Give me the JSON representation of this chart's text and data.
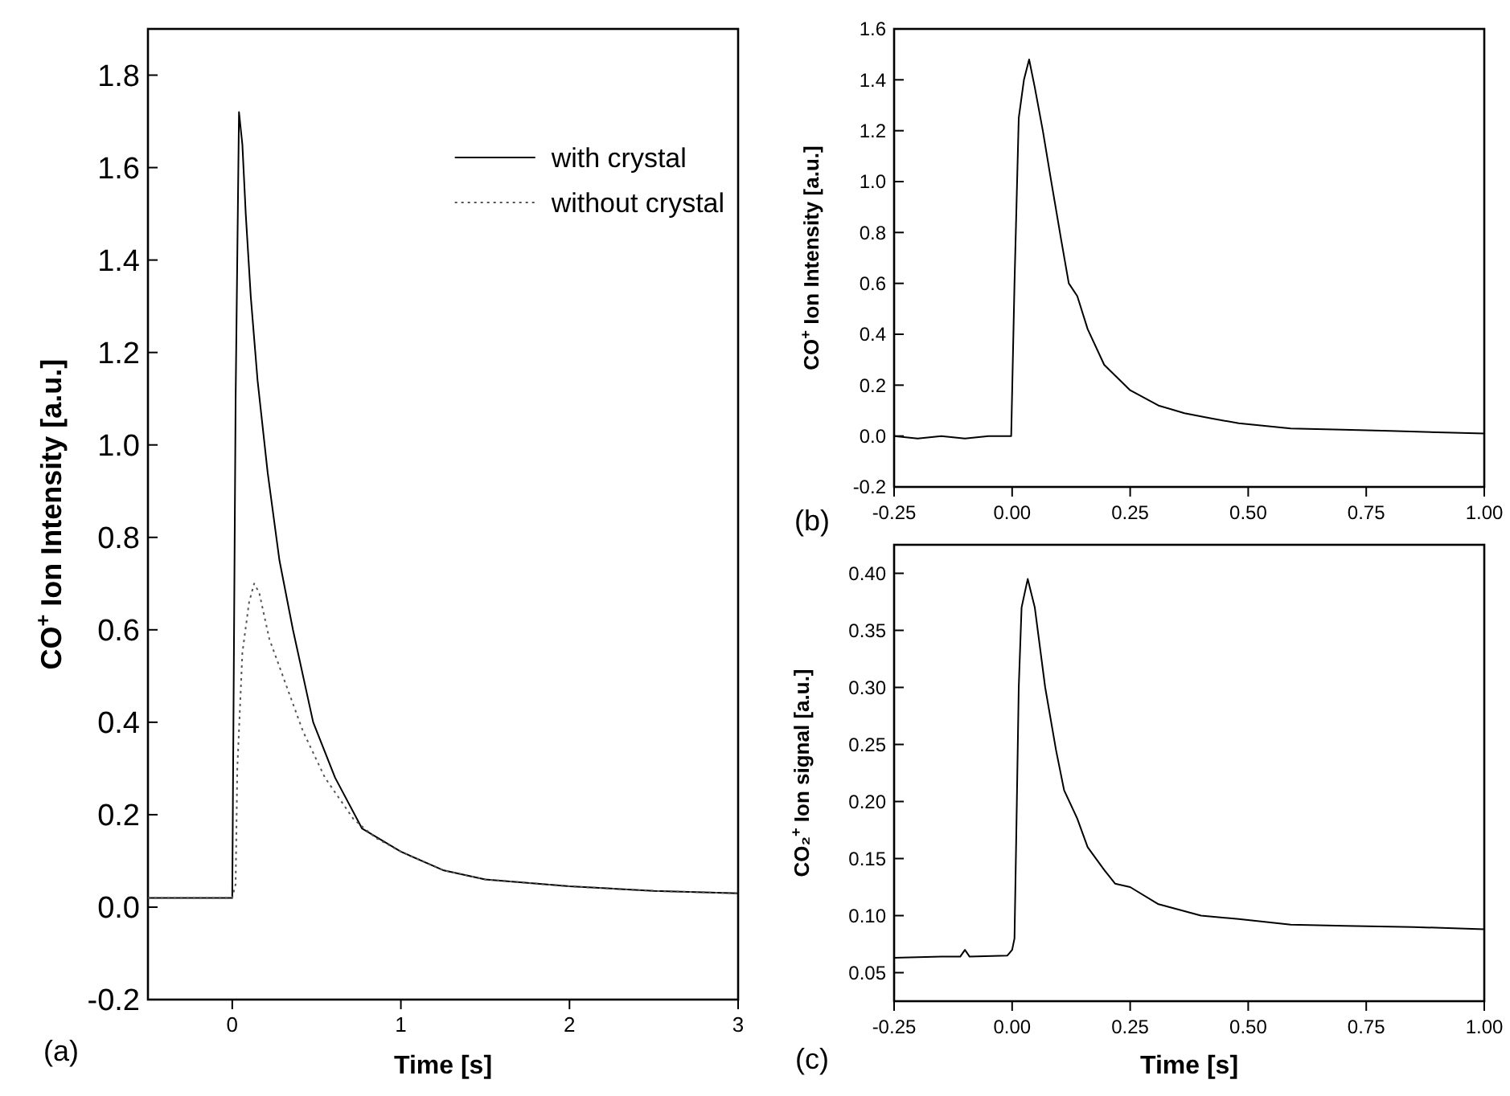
{
  "chart_data": [
    {
      "type": "line",
      "xlabel": "Time [s]",
      "ylabel": "CO$^{+}$ Ion Intensity [a.u.]",
      "annotations": [
        "(a)"
      ],
      "xlim": [
        -0.5,
        3
      ],
      "ylim": [
        -0.2,
        1.9
      ],
      "xticks": [
        0,
        1,
        2,
        3
      ],
      "yticks": [
        -0.2,
        {
          "value": 0,
          "label": "0.0"
        },
        0.2,
        0.4,
        0.6,
        0.8,
        {
          "value": 1,
          "label": "1.0"
        },
        1.2,
        1.4,
        1.6,
        1.8
      ],
      "grid": false,
      "legend": "top right",
      "series": [
        {
          "name": "with crystal",
          "color": "#000000",
          "line_style": "solid",
          "x": [
            -0.5,
            -0.3,
            -0.1,
            -0.01,
            0.0,
            0.02,
            0.04,
            0.06,
            0.08,
            0.11,
            0.15,
            0.21,
            0.28,
            0.36,
            0.48,
            0.61,
            0.77,
            1.0,
            1.25,
            1.5,
            2.0,
            2.5,
            3.0
          ],
          "values": [
            0.02,
            0.02,
            0.02,
            0.02,
            0.02,
            1.1,
            1.72,
            1.65,
            1.5,
            1.32,
            1.14,
            0.94,
            0.75,
            0.6,
            0.4,
            0.28,
            0.17,
            0.12,
            0.08,
            0.06,
            0.045,
            0.035,
            0.03
          ]
        },
        {
          "name": "without crystal",
          "color": "#555555",
          "line_style": "dotted",
          "x": [
            -0.5,
            -0.1,
            0.0,
            0.02,
            0.03,
            0.06,
            0.1,
            0.13,
            0.16,
            0.22,
            0.3,
            0.42,
            0.55,
            0.72,
            0.85,
            1.0,
            1.25,
            1.5,
            2.0,
            2.5,
            3.0
          ],
          "values": [
            0.02,
            0.02,
            0.02,
            0.05,
            0.3,
            0.55,
            0.66,
            0.7,
            0.68,
            0.58,
            0.5,
            0.38,
            0.28,
            0.19,
            0.15,
            0.12,
            0.08,
            0.06,
            0.045,
            0.035,
            0.03
          ]
        }
      ]
    },
    {
      "type": "line",
      "ylabel": "CO$^{+}$ Ion Intensity [a.u.]",
      "annotations": [
        "(b)"
      ],
      "xlim": [
        -0.25,
        1
      ],
      "ylim": [
        -0.2,
        1.6
      ],
      "xticks": [
        -0.25,
        {
          "value": 0,
          "label": "0.00"
        },
        0.25,
        {
          "value": 0.5,
          "label": "0.50"
        },
        0.75,
        {
          "value": 1,
          "label": "1.00"
        }
      ],
      "yticks": [
        -0.2,
        {
          "value": 0,
          "label": "0.0"
        },
        0.2,
        0.4,
        0.6,
        0.8,
        {
          "value": 1,
          "label": "1.0"
        },
        1.2,
        1.4,
        1.6
      ],
      "grid": false,
      "legend": false,
      "series": [
        {
          "color": "#000000",
          "line_style": "solid",
          "x": [
            -0.25,
            -0.2,
            -0.15,
            -0.1,
            -0.05,
            -0.002,
            0.005,
            0.014,
            0.025,
            0.036,
            0.048,
            0.065,
            0.082,
            0.104,
            0.12,
            0.138,
            0.16,
            0.195,
            0.25,
            0.31,
            0.365,
            0.42,
            0.48,
            0.59,
            0.7,
            0.8,
            0.9,
            1.0
          ],
          "values": [
            0,
            -0.01,
            0,
            -0.01,
            0,
            0,
            0.6,
            1.25,
            1.4,
            1.48,
            1.37,
            1.2,
            1.01,
            0.77,
            0.6,
            0.55,
            0.42,
            0.28,
            0.18,
            0.12,
            0.09,
            0.07,
            0.05,
            0.03,
            0.025,
            0.02,
            0.015,
            0.01
          ]
        }
      ]
    },
    {
      "type": "line",
      "xlabel": "Time [s]",
      "ylabel": "CO₂$^{+}$ Ion signal [a.u.]",
      "annotations": [
        "(c)"
      ],
      "xlim": [
        -0.25,
        1
      ],
      "ylim": [
        0.025,
        0.425
      ],
      "xticks": [
        -0.25,
        {
          "value": 0,
          "label": "0.00"
        },
        0.25,
        {
          "value": 0.5,
          "label": "0.50"
        },
        0.75,
        {
          "value": 1,
          "label": "1.00"
        }
      ],
      "yticks": [
        0.05,
        {
          "value": 0.1,
          "label": "0.10"
        },
        0.15,
        {
          "value": 0.2,
          "label": "0.20"
        },
        0.25,
        {
          "value": 0.3,
          "label": "0.30"
        },
        0.35,
        {
          "value": 0.4,
          "label": "0.40"
        }
      ],
      "grid": false,
      "legend": false,
      "series": [
        {
          "color": "#000000",
          "line_style": "solid",
          "x": [
            -0.25,
            -0.15,
            -0.11,
            -0.1,
            -0.09,
            -0.01,
            0.0,
            0.005,
            0.01,
            0.014,
            0.02,
            0.033,
            0.048,
            0.07,
            0.093,
            0.11,
            0.138,
            0.16,
            0.195,
            0.218,
            0.25,
            0.31,
            0.4,
            0.48,
            0.59,
            0.705,
            0.85,
            1.0
          ],
          "values": [
            0.063,
            0.064,
            0.064,
            0.07,
            0.064,
            0.065,
            0.07,
            0.08,
            0.2,
            0.3,
            0.37,
            0.395,
            0.37,
            0.3,
            0.245,
            0.21,
            0.185,
            0.16,
            0.14,
            0.128,
            0.125,
            0.11,
            0.1,
            0.097,
            0.092,
            0.091,
            0.09,
            0.088
          ]
        }
      ]
    }
  ]
}
